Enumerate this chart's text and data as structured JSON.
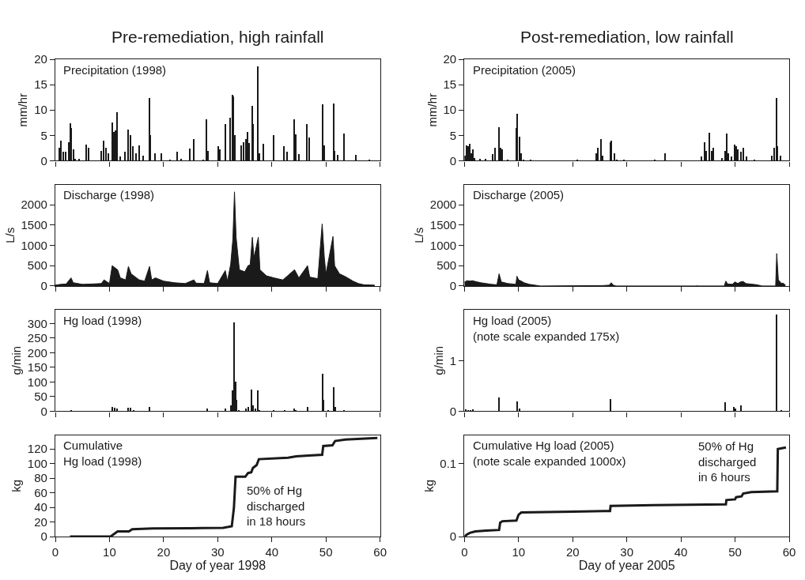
{
  "chart_data": [
    {
      "type": "bar",
      "title": "Pre-remediation, high rainfall",
      "ylabel": "mm/hr",
      "annotations": [
        "Precipitation (1998)"
      ],
      "color": "#1a1a1a",
      "tick_labels": "y",
      "xlim": [
        0,
        60
      ],
      "xticks": [
        0,
        10,
        20,
        30,
        40,
        50,
        60
      ],
      "ylim": [
        0,
        20
      ],
      "yticks": [
        0,
        5,
        10,
        15,
        20
      ],
      "x": [
        0.75,
        1.1,
        1.5,
        2.0,
        2.5,
        2.8,
        3.0,
        3.4,
        3.7,
        4.4,
        5.7,
        6.1,
        8.5,
        9.0,
        9.4,
        9.8,
        10.5,
        10.8,
        11.1,
        11.5,
        12.0,
        12.9,
        13.5,
        13.9,
        14.4,
        14.9,
        15.5,
        16.3,
        17.4,
        17.6,
        18.4,
        19.6,
        21.2,
        22.6,
        23.3,
        24.9,
        25.6,
        27.4,
        28.0,
        28.2,
        30.2,
        30.5,
        31.4,
        32.3,
        32.7,
        32.9,
        33.2,
        34.3,
        34.8,
        35.2,
        35.5,
        35.9,
        36.4,
        36.6,
        37.5,
        37.7,
        38.5,
        40.4,
        42.2,
        42.8,
        44.2,
        44.5,
        45.0,
        46.5,
        46.9,
        49.4,
        49.7,
        51.4,
        51.6,
        52.2,
        53.3,
        55.6,
        58.1
      ],
      "values": [
        2.5,
        4,
        1.8,
        1.8,
        3.6,
        7.4,
        6.5,
        2.3,
        0.3,
        0.3,
        3.2,
        2.5,
        2.0,
        4.0,
        2.5,
        1.5,
        7.6,
        5.6,
        6.0,
        9.6,
        0.8,
        1.8,
        6.2,
        5.0,
        2.8,
        1.5,
        3.0,
        1.0,
        12.4,
        5.0,
        1.5,
        1.5,
        0.2,
        1.8,
        0.3,
        2.4,
        4.3,
        0.2,
        8.2,
        2.0,
        2.8,
        2.2,
        7.2,
        8.4,
        13.0,
        12.7,
        5.0,
        3.0,
        3.6,
        4.2,
        5.6,
        3.5,
        10.8,
        7.2,
        18.6,
        1.5,
        3.4,
        5.1,
        2.9,
        1.8,
        8.1,
        5.2,
        1.3,
        7.3,
        4.6,
        11.1,
        3.0,
        11.2,
        2.0,
        1.1,
        5.3,
        1.2,
        0.2
      ]
    },
    {
      "type": "area",
      "ylabel": "L/s",
      "annotations": [
        "Discharge (1998)"
      ],
      "color": "#1a1a1a",
      "tick_labels": "y",
      "xlim": [
        0,
        60
      ],
      "xticks": [
        0,
        10,
        20,
        30,
        40,
        50,
        60
      ],
      "ylim": [
        0,
        2500
      ],
      "yticks": [
        0,
        500,
        1000,
        1500,
        2000
      ],
      "x": [
        0,
        1.0,
        2.0,
        2.9,
        3.3,
        5,
        7,
        8.5,
        9.0,
        10,
        10.5,
        11.0,
        11.5,
        12,
        13,
        13.5,
        14,
        15,
        15.5,
        16.5,
        17.4,
        17.8,
        18.5,
        20,
        22,
        24,
        25.6,
        26,
        27.5,
        28.1,
        28.5,
        30,
        31.4,
        31.8,
        32.4,
        32.8,
        33.1,
        33.4,
        34,
        35,
        35.6,
        36,
        36.4,
        36.7,
        37.5,
        37.8,
        39,
        40.4,
        42,
        42.3,
        44.2,
        45,
        46.6,
        47,
        48.5,
        49.3,
        49.7,
        50,
        51.3,
        51.6,
        52.5,
        53.3,
        54,
        55,
        56,
        57,
        59
      ],
      "values": [
        20,
        40,
        50,
        200,
        80,
        40,
        50,
        60,
        150,
        60,
        500,
        450,
        400,
        200,
        150,
        480,
        300,
        200,
        150,
        120,
        480,
        150,
        200,
        120,
        80,
        60,
        150,
        70,
        60,
        380,
        80,
        60,
        380,
        120,
        540,
        1150,
        2320,
        1200,
        400,
        350,
        500,
        520,
        1200,
        700,
        1200,
        400,
        250,
        200,
        150,
        180,
        400,
        200,
        500,
        220,
        180,
        1530,
        700,
        300,
        1220,
        500,
        300,
        250,
        200,
        120,
        60,
        30,
        20
      ]
    },
    {
      "type": "bar",
      "ylabel": "g/min",
      "annotations": [
        "Hg load (1998)"
      ],
      "color": "#1a1a1a",
      "tick_labels": "y",
      "xlim": [
        0,
        60
      ],
      "xticks": [
        0,
        10,
        20,
        30,
        40,
        50,
        60
      ],
      "ylim": [
        0,
        347
      ],
      "yticks": [
        0,
        50,
        100,
        150,
        200,
        250,
        300
      ],
      "x": [
        3.0,
        10.5,
        11.0,
        11.5,
        13.5,
        13.9,
        14.5,
        17.4,
        28.1,
        31.4,
        32.5,
        32.8,
        33.1,
        33.3,
        33.5,
        34.0,
        35.3,
        35.7,
        36.3,
        36.6,
        37.0,
        37.5,
        37.8,
        40.4,
        42.4,
        44.2,
        44.5,
        46.6,
        49.4,
        49.6,
        50.5,
        51.5,
        51.7,
        53.3
      ],
      "values": [
        2,
        15,
        12,
        10,
        12,
        13,
        3,
        14,
        10,
        10,
        20,
        72,
        305,
        100,
        40,
        5,
        10,
        15,
        73,
        20,
        10,
        72,
        5,
        3,
        2,
        10,
        5,
        15,
        128,
        40,
        3,
        82,
        15,
        5
      ]
    },
    {
      "type": "line",
      "xlabel": "Day of year 1998",
      "ylabel": "kg",
      "annotations": [
        "Cumulative\nHg load (1998)",
        "50% of Hg\ndischarged\nin 18 hours"
      ],
      "color": "#1a1a1a",
      "xlim": [
        0,
        60
      ],
      "xticks": [
        0,
        10,
        20,
        30,
        40,
        50,
        60
      ],
      "ylim": [
        0,
        139
      ],
      "yticks": [
        0,
        20,
        40,
        60,
        80,
        100,
        120
      ],
      "x": [
        2.7,
        10.2,
        11.5,
        13.6,
        14.2,
        18,
        25,
        31,
        32.6,
        33.0,
        33.3,
        35.1,
        35.6,
        36.2,
        36.5,
        37.2,
        37.6,
        43,
        44.5,
        46.8,
        49.3,
        49.5,
        51.2,
        51.7,
        53.6,
        59.5
      ],
      "values": [
        0,
        0,
        7,
        7,
        10,
        11,
        11.5,
        12,
        14,
        40,
        82,
        82,
        87,
        88,
        94,
        98,
        106,
        108,
        110,
        111,
        112,
        124,
        125,
        131,
        133,
        135
      ]
    },
    {
      "type": "bar",
      "title": "Post-remediation, low rainfall",
      "ylabel": "mm/hr",
      "annotations": [
        "Precipitation (2005)"
      ],
      "color": "#1a1a1a",
      "tick_labels": "y",
      "xlim": [
        0,
        60
      ],
      "xticks": [
        0,
        10,
        20,
        30,
        40,
        50,
        60
      ],
      "ylim": [
        0,
        20
      ],
      "yticks": [
        0,
        5,
        10,
        15,
        20
      ],
      "x": [
        0.2,
        0.5,
        0.8,
        1.1,
        1.3,
        1.7,
        2.0,
        2.9,
        4.0,
        5.3,
        5.8,
        6.4,
        6.7,
        7.0,
        8.0,
        9.7,
        9.8,
        10.2,
        10.5,
        11.0,
        12.3,
        21.0,
        24.5,
        24.8,
        25.3,
        25.6,
        27.0,
        27.2,
        27.8,
        28.3,
        29.5,
        35.3,
        37.1,
        43.8,
        44.5,
        44.8,
        45.3,
        45.7,
        46.1,
        47.7,
        48.2,
        48.5,
        48.8,
        49.4,
        50.0,
        50.3,
        50.6,
        51.2,
        51.6,
        52.2,
        53.6,
        56.9,
        57.3,
        57.7,
        57.9,
        58.5
      ],
      "values": [
        1.0,
        3.0,
        2.9,
        3.4,
        1.5,
        2.2,
        0.5,
        0.3,
        0.3,
        1.3,
        2.5,
        6.6,
        2.5,
        2.2,
        0.2,
        6.5,
        9.2,
        4.7,
        1.5,
        0.2,
        0.2,
        0.2,
        1.5,
        2.5,
        4.2,
        1.0,
        3.7,
        4.0,
        1.5,
        0.2,
        0.2,
        0.2,
        1.4,
        0.8,
        3.6,
        2.0,
        5.5,
        2.0,
        2.5,
        0.5,
        2.0,
        5.4,
        1.5,
        0.9,
        3.2,
        2.8,
        2.2,
        1.8,
        2.5,
        0.8,
        0.2,
        1.0,
        2.5,
        12.4,
        2.8,
        1.0
      ]
    },
    {
      "type": "area",
      "ylabel": "L/s",
      "annotations": [
        "Discharge (2005)"
      ],
      "color": "#1a1a1a",
      "tick_labels": "y",
      "xlim": [
        0,
        60
      ],
      "xticks": [
        0,
        10,
        20,
        30,
        40,
        50,
        60
      ],
      "ylim": [
        0,
        2500
      ],
      "yticks": [
        0,
        500,
        1000,
        1500,
        2000
      ],
      "x": [
        0,
        0.5,
        1.0,
        1.5,
        2.0,
        3,
        4,
        5,
        6,
        6.4,
        6.8,
        8,
        9.5,
        9.7,
        10.0,
        10.5,
        11,
        12,
        13,
        14,
        25.5,
        26.8,
        27.1,
        27.5,
        28,
        42.9,
        43,
        43.1,
        48,
        48.3,
        48.6,
        49.5,
        50,
        50.5,
        51,
        51.5,
        52,
        54,
        55,
        57.5,
        57.7,
        58,
        58.5,
        59,
        59.3
      ],
      "values": [
        100,
        130,
        120,
        130,
        110,
        80,
        60,
        40,
        30,
        300,
        100,
        60,
        40,
        240,
        150,
        120,
        80,
        40,
        20,
        0,
        10,
        20,
        80,
        20,
        0,
        0,
        15,
        0,
        0,
        120,
        50,
        40,
        100,
        60,
        100,
        110,
        60,
        30,
        0,
        0,
        800,
        150,
        70,
        60,
        20
      ]
    },
    {
      "type": "bar",
      "ylabel": "g/min",
      "annotations": [
        "Hg load (2005)\n(note scale expanded 175x)"
      ],
      "color": "#1a1a1a",
      "tick_labels": "y",
      "xlim": [
        0,
        60
      ],
      "xticks": [
        0,
        10,
        20,
        30,
        40,
        50,
        60
      ],
      "ylim": [
        0,
        2.0
      ],
      "yticks": [
        0,
        1
      ],
      "x": [
        0.4,
        0.8,
        1.2,
        1.7,
        6.5,
        9.8,
        10.2,
        27.0,
        48.3,
        49.9,
        50.2,
        51.2,
        57.8,
        58.6
      ],
      "values": [
        0.03,
        0.02,
        0.02,
        0.03,
        0.27,
        0.19,
        0.06,
        0.24,
        0.17,
        0.08,
        0.05,
        0.11,
        1.9,
        0.02
      ]
    },
    {
      "type": "line",
      "xlabel": "Day of year 2005",
      "ylabel": "kg",
      "annotations": [
        "Cumulative Hg load (2005)\n(note scale expanded 1000x)",
        "50% of Hg\ndischarged\nin 6 hours"
      ],
      "color": "#1a1a1a",
      "xlim": [
        0,
        60
      ],
      "xticks": [
        0,
        10,
        20,
        30,
        40,
        50,
        60
      ],
      "ylim": [
        0,
        0.139
      ],
      "yticks": [
        0,
        0.1
      ],
      "x": [
        0,
        0.5,
        1,
        2,
        4,
        6.4,
        6.6,
        7,
        9.6,
        10,
        10.5,
        20,
        26.9,
        27,
        35,
        48.3,
        48.4,
        50,
        50.2,
        51.2,
        51.5,
        53,
        57.8,
        57.9,
        59.4
      ],
      "values": [
        0,
        0.003,
        0.005,
        0.007,
        0.008,
        0.009,
        0.019,
        0.021,
        0.022,
        0.03,
        0.033,
        0.034,
        0.035,
        0.042,
        0.043,
        0.044,
        0.05,
        0.051,
        0.054,
        0.055,
        0.059,
        0.061,
        0.062,
        0.12,
        0.122
      ]
    }
  ]
}
